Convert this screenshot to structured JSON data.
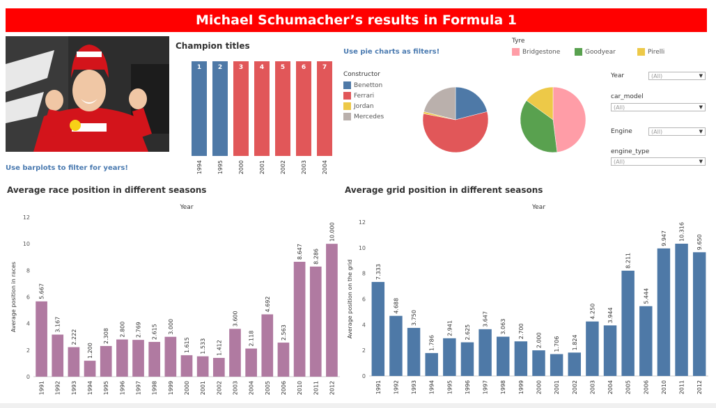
{
  "title": "Michael Schumacher’s results in Formula 1",
  "notes": {
    "barplot_filter": "Use barplots to filter for years!",
    "pie_filter": "Use pie charts as filters!"
  },
  "champion": {
    "title": "Champion titles"
  },
  "constructor_legend": {
    "title": "Constructor",
    "items": [
      {
        "label": "Benetton",
        "color": "#4e79a7"
      },
      {
        "label": "Ferrari",
        "color": "#e15759"
      },
      {
        "label": "Jordan",
        "color": "#edc948"
      },
      {
        "label": "Mercedes",
        "color": "#bab0ac"
      }
    ]
  },
  "tyre_legend": {
    "title": "Tyre",
    "items": [
      {
        "label": "Bridgestone",
        "color": "#ff9da7"
      },
      {
        "label": "Goodyear",
        "color": "#59a14f"
      },
      {
        "label": "Pirelli",
        "color": "#edc948"
      }
    ]
  },
  "filters": [
    {
      "label": "Year",
      "value": "(All)"
    },
    {
      "label": "car_model",
      "value": "(All)"
    },
    {
      "label": "Engine",
      "value": "(All)"
    },
    {
      "label": "engine_type",
      "value": "(All)"
    }
  ],
  "race_chart": {
    "title": "Average race position in different seasons",
    "top_axis": "Year"
  },
  "grid_chart": {
    "title": "Average grid position in different seasons",
    "top_axis": "Year"
  },
  "chart_data": [
    {
      "type": "bar",
      "title": "Champion titles",
      "categories": [
        "1994",
        "1995",
        "2000",
        "2001",
        "2002",
        "2003",
        "2004"
      ],
      "values": [
        1,
        2,
        3,
        4,
        5,
        6,
        7
      ],
      "colors": [
        "#4e79a7",
        "#4e79a7",
        "#e15759",
        "#e15759",
        "#e15759",
        "#e15759",
        "#e15759"
      ]
    },
    {
      "type": "pie",
      "title": "Constructor",
      "slices": [
        {
          "label": "Benetton",
          "value": 21,
          "color": "#4e79a7"
        },
        {
          "label": "Ferrari",
          "value": 57,
          "color": "#e15759"
        },
        {
          "label": "Jordan",
          "value": 1,
          "color": "#edc948"
        },
        {
          "label": "Mercedes",
          "value": 21,
          "color": "#bab0ac"
        }
      ]
    },
    {
      "type": "pie",
      "title": "Tyre",
      "slices": [
        {
          "label": "Bridgestone",
          "value": 48,
          "color": "#ff9da7"
        },
        {
          "label": "Goodyear",
          "value": 37,
          "color": "#59a14f"
        },
        {
          "label": "Pirelli",
          "value": 15,
          "color": "#edc948"
        }
      ]
    },
    {
      "type": "bar",
      "title": "Average race position in different seasons",
      "xlabel": "Year",
      "ylabel": "Average position in races",
      "ylim": [
        0,
        12
      ],
      "yticks": [
        0,
        2,
        4,
        6,
        8,
        10,
        12
      ],
      "color": "#b07aa1",
      "categories": [
        "1991",
        "1992",
        "1993",
        "1994",
        "1995",
        "1996",
        "1997",
        "1998",
        "1999",
        "2000",
        "2001",
        "2002",
        "2003",
        "2004",
        "2005",
        "2006",
        "2010",
        "2011",
        "2012"
      ],
      "values": [
        5.667,
        3.167,
        2.222,
        1.2,
        2.308,
        2.8,
        2.769,
        2.615,
        3.0,
        1.615,
        1.533,
        1.412,
        3.6,
        2.118,
        4.692,
        2.563,
        8.647,
        8.286,
        10.0
      ],
      "labels": [
        "5.667",
        "3.167",
        "2.222",
        "1.200",
        "2.308",
        "2.800",
        "2.769",
        "2.615",
        "3.000",
        "1.615",
        "1.533",
        "1.412",
        "3.600",
        "2.118",
        "4.692",
        "2.563",
        "8.647",
        "8.286",
        "10.000"
      ]
    },
    {
      "type": "bar",
      "title": "Average grid position in different seasons",
      "xlabel": "Year",
      "ylabel": "Average position on the grid",
      "ylim": [
        0,
        12
      ],
      "yticks": [
        0,
        2,
        4,
        6,
        8,
        10,
        12
      ],
      "color": "#4e79a7",
      "categories": [
        "1991",
        "1992",
        "1993",
        "1994",
        "1995",
        "1996",
        "1997",
        "1998",
        "1999",
        "2000",
        "2001",
        "2002",
        "2003",
        "2004",
        "2005",
        "2006",
        "2010",
        "2011",
        "2012"
      ],
      "values": [
        7.333,
        4.688,
        3.75,
        1.786,
        2.941,
        2.625,
        3.647,
        3.063,
        2.7,
        2.0,
        1.706,
        1.824,
        4.25,
        3.944,
        8.211,
        5.444,
        9.947,
        10.316,
        9.65
      ],
      "labels": [
        "7.333",
        "4.688",
        "3.750",
        "1.786",
        "2.941",
        "2.625",
        "3.647",
        "3.063",
        "2.700",
        "2.000",
        "1.706",
        "1.824",
        "4.250",
        "3.944",
        "8.211",
        "5.444",
        "9.947",
        "10.316",
        "9.650"
      ]
    }
  ]
}
